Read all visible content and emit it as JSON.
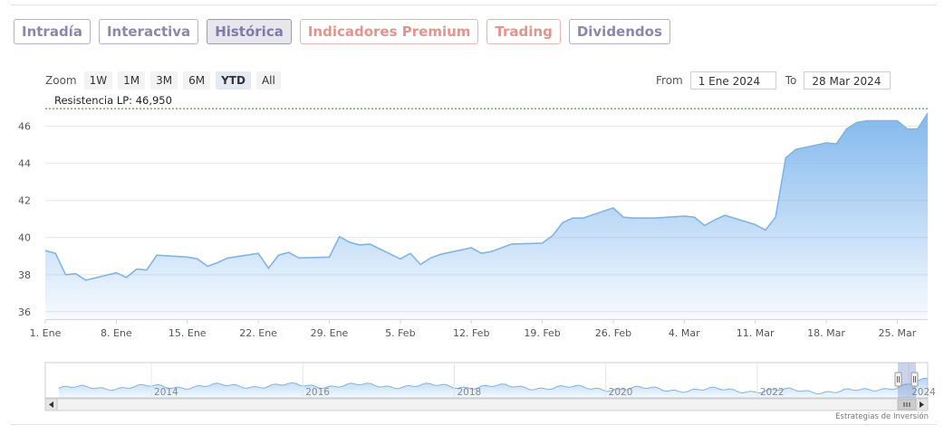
{
  "tabs": [
    {
      "label": "Intradía",
      "active": false,
      "premium": false
    },
    {
      "label": "Interactiva",
      "active": false,
      "premium": false
    },
    {
      "label": "Histórica",
      "active": true,
      "premium": false
    },
    {
      "label": "Indicadores Premium",
      "active": false,
      "premium": true
    },
    {
      "label": "Trading",
      "active": false,
      "premium": true
    },
    {
      "label": "Dividendos",
      "active": false,
      "premium": false
    }
  ],
  "zoom": {
    "label": "Zoom",
    "buttons": [
      "1W",
      "1M",
      "3M",
      "6M",
      "YTD",
      "All"
    ],
    "selected": "YTD"
  },
  "range": {
    "from_label": "From",
    "from_value": "1 Ene 2024",
    "to_label": "To",
    "to_value": "28 Mar 2024"
  },
  "credit": "Estrategias de Inversión",
  "chart_data": {
    "type": "area",
    "ylim": [
      35.6,
      47.2
    ],
    "yticks": [
      36,
      38,
      40,
      42,
      44,
      46
    ],
    "xlim": [
      0,
      87
    ],
    "xticks": [
      {
        "label": "1. Ene",
        "day": 0
      },
      {
        "label": "8. Ene",
        "day": 7
      },
      {
        "label": "15. Ene",
        "day": 14
      },
      {
        "label": "22. Ene",
        "day": 21
      },
      {
        "label": "29. Ene",
        "day": 28
      },
      {
        "label": "5. Feb",
        "day": 35
      },
      {
        "label": "12. Feb",
        "day": 42
      },
      {
        "label": "19. Feb",
        "day": 49
      },
      {
        "label": "26. Feb",
        "day": 56
      },
      {
        "label": "4. Mar",
        "day": 63
      },
      {
        "label": "11. Mar",
        "day": 70
      },
      {
        "label": "18. Mar",
        "day": 77
      },
      {
        "label": "25. Mar",
        "day": 84
      }
    ],
    "x": [
      0,
      1,
      2,
      3,
      4,
      7,
      8,
      9,
      10,
      11,
      14,
      15,
      16,
      17,
      18,
      21,
      22,
      23,
      24,
      25,
      28,
      29,
      30,
      31,
      32,
      35,
      36,
      37,
      38,
      39,
      42,
      43,
      44,
      45,
      46,
      49,
      50,
      51,
      52,
      53,
      56,
      57,
      58,
      59,
      60,
      63,
      64,
      65,
      66,
      67,
      70,
      71,
      72,
      73,
      74,
      77,
      78,
      79,
      80,
      81,
      84,
      85,
      86,
      87
    ],
    "values": [
      39.3,
      39.15,
      38,
      38.05,
      37.7,
      38.1,
      37.85,
      38.3,
      38.25,
      39.05,
      38.95,
      38.85,
      38.45,
      38.65,
      38.9,
      39.15,
      38.35,
      39.05,
      39.2,
      38.9,
      38.95,
      40.05,
      39.75,
      39.6,
      39.65,
      38.85,
      39.15,
      38.55,
      38.9,
      39.1,
      39.45,
      39.15,
      39.25,
      39.45,
      39.65,
      39.7,
      40.1,
      40.8,
      41.05,
      41.05,
      41.6,
      41.1,
      41.05,
      41.05,
      41.05,
      41.15,
      41.1,
      40.65,
      40.95,
      41.2,
      40.7,
      40.4,
      41.1,
      44.3,
      44.75,
      45.1,
      45.05,
      45.85,
      46.2,
      46.3,
      46.3,
      45.85,
      45.85,
      46.7
    ],
    "resistance": {
      "label": "Resistencia LP: 46,950",
      "value": 46.95
    },
    "navigator": {
      "xlim": [
        2012.6,
        2024.25
      ],
      "labels": [
        "2014",
        "2016",
        "2018",
        "2020",
        "2022",
        "2024"
      ],
      "label_years": [
        2014,
        2016,
        2018,
        2020,
        2022,
        2024
      ]
    }
  },
  "colors": {
    "line": "#7cb5ec",
    "fill_top": "#7cb5ec",
    "grid": "#e6e6e6",
    "resistance": "#2e7d32",
    "accent": "#8a88ad",
    "premium": "#e2958c"
  }
}
